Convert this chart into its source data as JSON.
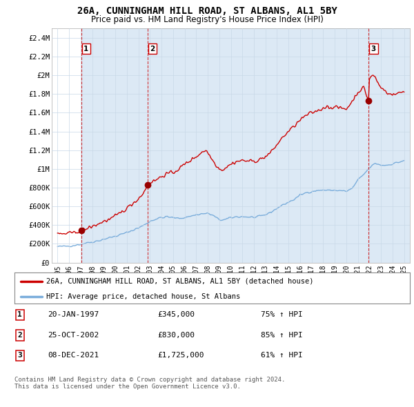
{
  "title": "26A, CUNNINGHAM HILL ROAD, ST ALBANS, AL1 5BY",
  "subtitle": "Price paid vs. HM Land Registry's House Price Index (HPI)",
  "ylim": [
    0,
    2500000
  ],
  "xlim": [
    1994.5,
    2025.5
  ],
  "yticks": [
    0,
    200000,
    400000,
    600000,
    800000,
    1000000,
    1200000,
    1400000,
    1600000,
    1800000,
    2000000,
    2200000,
    2400000
  ],
  "ytick_labels": [
    "£0",
    "£200K",
    "£400K",
    "£600K",
    "£800K",
    "£1M",
    "£1.2M",
    "£1.4M",
    "£1.6M",
    "£1.8M",
    "£2M",
    "£2.2M",
    "£2.4M"
  ],
  "xticks": [
    1995,
    1996,
    1997,
    1998,
    1999,
    2000,
    2001,
    2002,
    2003,
    2004,
    2005,
    2006,
    2007,
    2008,
    2009,
    2010,
    2011,
    2012,
    2013,
    2014,
    2015,
    2016,
    2017,
    2018,
    2019,
    2020,
    2021,
    2022,
    2023,
    2024,
    2025
  ],
  "sale_dates": [
    1997.055,
    2002.814,
    2021.936
  ],
  "sale_prices": [
    345000,
    830000,
    1725000
  ],
  "sale_labels": [
    "1",
    "2",
    "3"
  ],
  "line_color_red": "#cc0000",
  "line_color_blue": "#7aaddb",
  "shade_color": "#dce9f5",
  "vline_color": "#cc0000",
  "legend_label_red": "26A, CUNNINGHAM HILL ROAD, ST ALBANS, AL1 5BY (detached house)",
  "legend_label_blue": "HPI: Average price, detached house, St Albans",
  "table_data": [
    [
      "1",
      "20-JAN-1997",
      "£345,000",
      "75% ↑ HPI"
    ],
    [
      "2",
      "25-OCT-2002",
      "£830,000",
      "85% ↑ HPI"
    ],
    [
      "3",
      "08-DEC-2021",
      "£1,725,000",
      "61% ↑ HPI"
    ]
  ],
  "footnote": "Contains HM Land Registry data © Crown copyright and database right 2024.\nThis data is licensed under the Open Government Licence v3.0.",
  "background_color": "#ffffff",
  "grid_color": "#c8d8e8"
}
